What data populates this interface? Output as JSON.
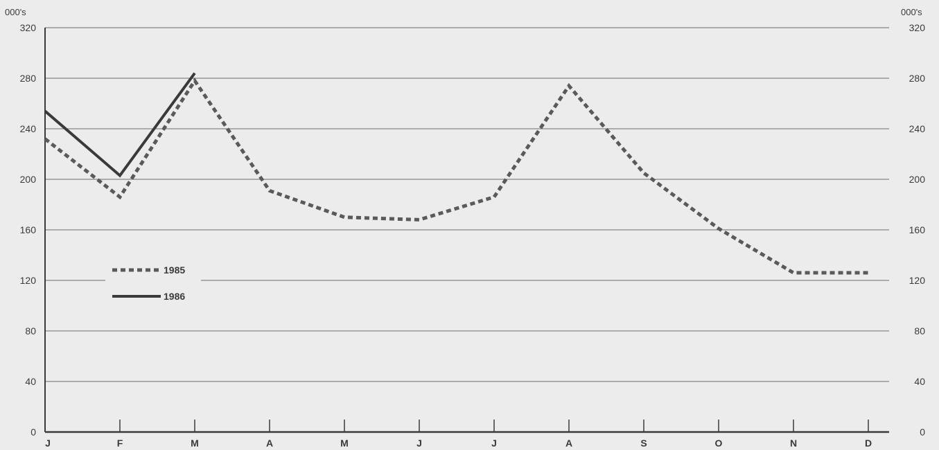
{
  "chart_data": {
    "type": "line",
    "y_unit_label": "000's",
    "categories": [
      "J",
      "F",
      "M",
      "A",
      "M",
      "J",
      "J",
      "A",
      "S",
      "O",
      "N",
      "D"
    ],
    "ylim": [
      0,
      320
    ],
    "yticks": [
      0,
      40,
      80,
      120,
      160,
      200,
      240,
      280,
      320
    ],
    "grid": true,
    "legend_position": "left, mid-height",
    "series": [
      {
        "name": "1985",
        "style": "dashed",
        "color": "#5a5a5a",
        "values": [
          232,
          186,
          278,
          191,
          170,
          168,
          186,
          274,
          205,
          161,
          126,
          126
        ]
      },
      {
        "name": "1986",
        "style": "solid",
        "color": "#3a3a3a",
        "values": [
          254,
          203,
          284,
          null,
          null,
          null,
          null,
          null,
          null,
          null,
          null,
          null
        ]
      }
    ]
  }
}
